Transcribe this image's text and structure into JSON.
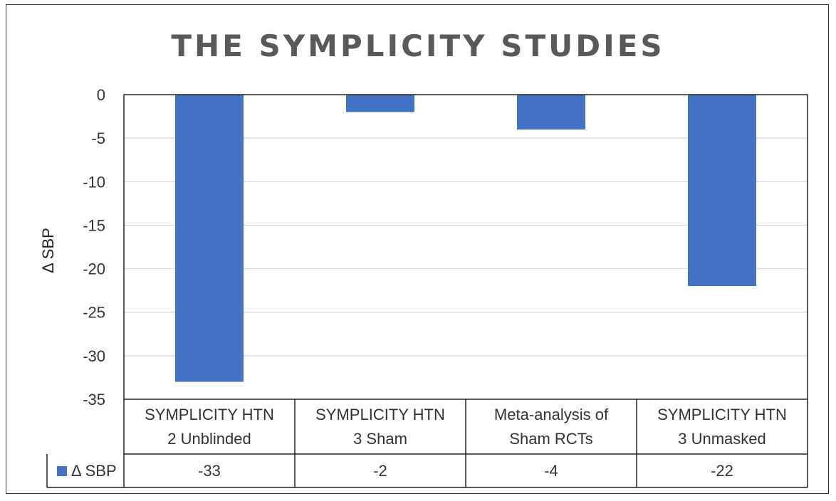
{
  "chart_data": {
    "type": "bar",
    "title": "THE SYMPLICITY STUDIES",
    "ylabel": "Δ SBP",
    "xlabel": "",
    "ylim": [
      -35,
      0
    ],
    "ytick_step": 5,
    "grid": true,
    "categories": [
      "SYMPLICITY HTN 2 Unblinded",
      "SYMPLICITY HTN 3 Sham",
      "Meta-analysis of Sham RCTs",
      "SYMPLICITY HTN 3 Unmasked"
    ],
    "category_lines": [
      [
        "SYMPLICITY HTN",
        "2 Unblinded"
      ],
      [
        "SYMPLICITY HTN",
        "3 Sham"
      ],
      [
        "Meta-analysis of",
        "Sham RCTs"
      ],
      [
        "SYMPLICITY HTN",
        "3 Unmasked"
      ]
    ],
    "series": [
      {
        "name": "Δ SBP",
        "values": [
          -33,
          -2,
          -4,
          -22
        ],
        "labels": [
          "-33",
          "-2",
          "-4",
          "-22"
        ]
      }
    ],
    "bar_color": "#4472C4",
    "data_table": true
  }
}
